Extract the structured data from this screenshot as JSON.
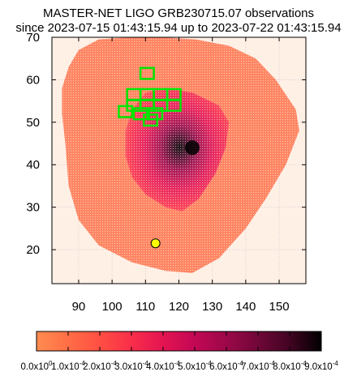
{
  "chart_data": {
    "type": "heatmap",
    "title_line1": "MASTER-NET LIGO GRB230715.07 observations",
    "title_line2": "since 2023-07-15 01:43:15.94 up to 2023-07-22 01:43:15.94",
    "xlim": [
      82,
      158
    ],
    "ylim": [
      12,
      70
    ],
    "xticks": [
      90,
      100,
      110,
      120,
      130,
      140,
      150
    ],
    "yticks": [
      20,
      30,
      40,
      50,
      60,
      70
    ],
    "grid": true,
    "colorbar": {
      "range": [
        0,
        0.0009
      ],
      "ticks": [
        "0.0x10^0",
        "1.0x10^-4",
        "2.0x10^-4",
        "3.0x10^-4",
        "4.0x10^-4",
        "5.0x10^-4",
        "6.0x10^-4",
        "7.0x10^-4",
        "8.0x10^-4",
        "9.0x10^-4"
      ],
      "colors": [
        "#ff8c50",
        "#ff6e46",
        "#ff4f43",
        "#f82e4a",
        "#e31452",
        "#c30854",
        "#9c0849",
        "#700738",
        "#410422",
        "#000000"
      ]
    },
    "probability_region": {
      "outer_boundary": [
        [
          85,
          58
        ],
        [
          87,
          63
        ],
        [
          90,
          67
        ],
        [
          96,
          69.5
        ],
        [
          105,
          70
        ],
        [
          115,
          70
        ],
        [
          125,
          69.5
        ],
        [
          135,
          68
        ],
        [
          143,
          65
        ],
        [
          149,
          60
        ],
        [
          155,
          53
        ],
        [
          156,
          48
        ],
        [
          152,
          40
        ],
        [
          146,
          32
        ],
        [
          140,
          25
        ],
        [
          132,
          18
        ],
        [
          124,
          14.5
        ],
        [
          116,
          15
        ],
        [
          106,
          17
        ],
        [
          96,
          21
        ],
        [
          90,
          27
        ],
        [
          87,
          35
        ],
        [
          86,
          45
        ],
        [
          85,
          52
        ]
      ],
      "core_boundary": [
        [
          106,
          53
        ],
        [
          110,
          57
        ],
        [
          116,
          58
        ],
        [
          124,
          57
        ],
        [
          132,
          54
        ],
        [
          135,
          50
        ],
        [
          134,
          44
        ],
        [
          131,
          38
        ],
        [
          126,
          32
        ],
        [
          121,
          29
        ],
        [
          116,
          30
        ],
        [
          110,
          33
        ],
        [
          106,
          37
        ],
        [
          104,
          42
        ],
        [
          104,
          48
        ]
      ],
      "peak": [
        124,
        44
      ]
    },
    "observation_fields": [
      [
        110.5,
        61.5
      ],
      [
        106.5,
        56.5
      ],
      [
        110.5,
        56.5
      ],
      [
        114.5,
        56.5
      ],
      [
        118.5,
        56.5
      ],
      [
        106.5,
        54
      ],
      [
        110.5,
        54
      ],
      [
        114.5,
        54
      ],
      [
        118.5,
        54
      ],
      [
        104,
        52.5
      ],
      [
        108.5,
        52
      ],
      [
        113,
        52
      ],
      [
        111.5,
        50.5
      ]
    ],
    "marker": [
      113,
      21.5
    ]
  }
}
